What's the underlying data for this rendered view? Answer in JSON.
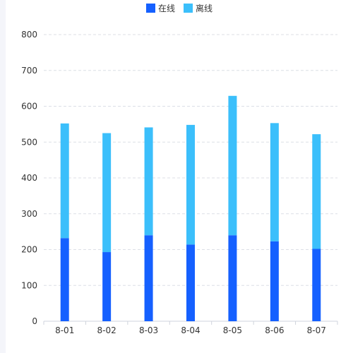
{
  "chart_data": {
    "type": "bar",
    "stacked": true,
    "categories": [
      "8-01",
      "8-02",
      "8-03",
      "8-04",
      "8-05",
      "8-06",
      "8-07"
    ],
    "series": [
      {
        "name": "在线",
        "color": "#1560ff",
        "values": [
          232,
          193,
          240,
          214,
          240,
          223,
          202
        ]
      },
      {
        "name": "离线",
        "color": "#3bbffb",
        "values": [
          320,
          332,
          301,
          334,
          389,
          330,
          320
        ]
      }
    ],
    "ylim": [
      0,
      800
    ],
    "yticks": [
      0,
      100,
      200,
      300,
      400,
      500,
      600,
      700,
      800
    ],
    "grid": true,
    "legend_position": "top-center"
  }
}
